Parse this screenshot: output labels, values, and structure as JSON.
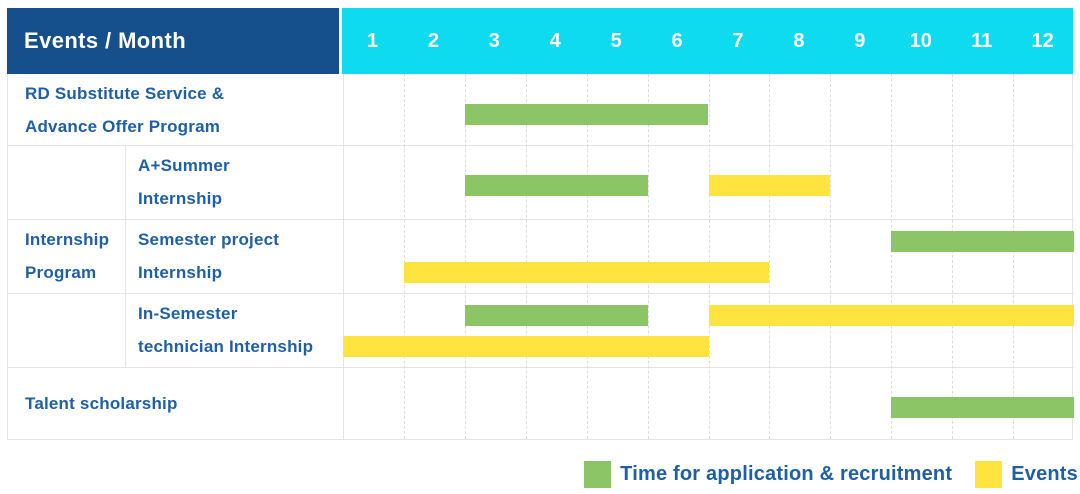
{
  "title": "Events / Month",
  "months": [
    "1",
    "2",
    "3",
    "4",
    "5",
    "6",
    "7",
    "8",
    "9",
    "10",
    "11",
    "12"
  ],
  "colors": {
    "header_bg": "#15508C",
    "months_bg": "#0FDBF0",
    "label_text": "#1F5FA5",
    "green": "#8BC565",
    "yellow": "#FFE43F",
    "grid": "#E4E4E4"
  },
  "group_label": "Internship\nProgram",
  "legend": {
    "items": [
      {
        "color": "green",
        "label": "Time for application & recruitment"
      },
      {
        "color": "yellow",
        "label": "Events"
      }
    ]
  },
  "chart_data": {
    "type": "table",
    "variant": "gantt",
    "title": "Events / Month",
    "x_categories": [
      1,
      2,
      3,
      4,
      5,
      6,
      7,
      8,
      9,
      10,
      11,
      12
    ],
    "legend": [
      "Time for application & recruitment",
      "Events"
    ],
    "rows": [
      {
        "group": "",
        "label": "RD Substitute Service &\nAdvance Offer Program",
        "bars": [
          {
            "series": "Time for application & recruitment",
            "color": "green",
            "start_month": 3,
            "end_month": 6,
            "lane": "single"
          }
        ]
      },
      {
        "group": "Internship Program",
        "label": "A+Summer\nInternship",
        "bars": [
          {
            "series": "Time for application & recruitment",
            "color": "green",
            "start_month": 3,
            "end_month": 5,
            "lane": "single"
          },
          {
            "series": "Events",
            "color": "yellow",
            "start_month": 7,
            "end_month": 8,
            "lane": "single"
          }
        ]
      },
      {
        "group": "Internship Program",
        "label": "Semester project\nInternship",
        "bars": [
          {
            "series": "Time for application & recruitment",
            "color": "green",
            "start_month": 10,
            "end_month": 12,
            "lane": "top"
          },
          {
            "series": "Events",
            "color": "yellow",
            "start_month": 2,
            "end_month": 7,
            "lane": "bottom"
          }
        ]
      },
      {
        "group": "Internship Program",
        "label": "In-Semester\ntechnician Internship",
        "bars": [
          {
            "series": "Time for application & recruitment",
            "color": "green",
            "start_month": 3,
            "end_month": 5,
            "lane": "top"
          },
          {
            "series": "Events",
            "color": "yellow",
            "start_month": 7,
            "end_month": 12,
            "lane": "top"
          },
          {
            "series": "Events",
            "color": "yellow",
            "start_month": 1,
            "end_month": 6,
            "lane": "bottom"
          }
        ]
      },
      {
        "group": "",
        "label": "Talent scholarship",
        "bars": [
          {
            "series": "Time for application & recruitment",
            "color": "green",
            "start_month": 10,
            "end_month": 12,
            "lane": "single"
          }
        ]
      }
    ]
  }
}
